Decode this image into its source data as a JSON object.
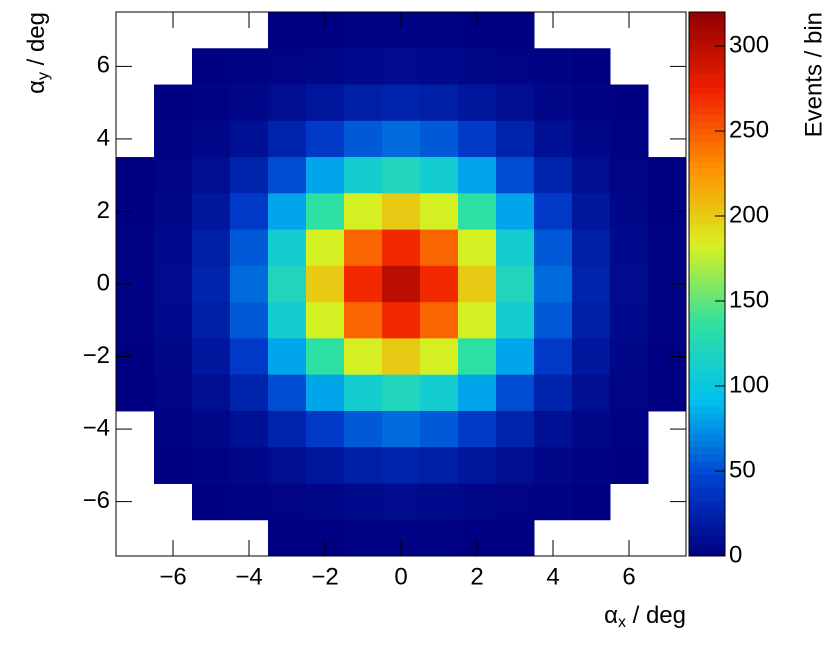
{
  "chart_data": {
    "type": "heatmap",
    "xlabel": [
      "α",
      "x",
      " / deg"
    ],
    "ylabel": [
      "α",
      "y",
      " / deg"
    ],
    "zlabel": "Events / bin",
    "x": [
      -7,
      -6,
      -5,
      -4,
      -3,
      -2,
      -1,
      0,
      1,
      2,
      3,
      4,
      5,
      6,
      7
    ],
    "y": [
      7,
      6,
      5,
      4,
      3,
      2,
      1,
      0,
      -1,
      -2,
      -3,
      -4,
      -5,
      -6,
      -7
    ],
    "z": [
      [
        0,
        0,
        0,
        0,
        1,
        1,
        2,
        2,
        2,
        1,
        1,
        0,
        0,
        0,
        0
      ],
      [
        0,
        0,
        1,
        2,
        3,
        5,
        7,
        8,
        7,
        5,
        3,
        2,
        1,
        0,
        0
      ],
      [
        0,
        1,
        2,
        5,
        10,
        16,
        22,
        25,
        22,
        16,
        10,
        5,
        2,
        1,
        0
      ],
      [
        0,
        2,
        5,
        12,
        25,
        41,
        55,
        61,
        55,
        41,
        25,
        12,
        5,
        2,
        0
      ],
      [
        1,
        3,
        10,
        25,
        50,
        82,
        110,
        122,
        110,
        82,
        50,
        25,
        10,
        3,
        1
      ],
      [
        1,
        5,
        16,
        41,
        82,
        135,
        182,
        201,
        182,
        135,
        82,
        41,
        16,
        5,
        1
      ],
      [
        2,
        7,
        22,
        55,
        110,
        182,
        246,
        271,
        246,
        182,
        110,
        55,
        22,
        7,
        2
      ],
      [
        2,
        8,
        25,
        61,
        122,
        201,
        271,
        300,
        271,
        201,
        122,
        61,
        25,
        8,
        2
      ],
      [
        2,
        7,
        22,
        55,
        110,
        182,
        246,
        271,
        246,
        182,
        110,
        55,
        22,
        7,
        2
      ],
      [
        1,
        5,
        16,
        41,
        82,
        135,
        182,
        201,
        182,
        135,
        82,
        41,
        16,
        5,
        1
      ],
      [
        1,
        3,
        10,
        25,
        50,
        82,
        110,
        122,
        110,
        82,
        50,
        25,
        10,
        3,
        1
      ],
      [
        0,
        2,
        5,
        12,
        25,
        41,
        55,
        61,
        55,
        41,
        25,
        12,
        5,
        2,
        0
      ],
      [
        0,
        1,
        2,
        5,
        10,
        16,
        22,
        25,
        22,
        16,
        10,
        5,
        2,
        1,
        0
      ],
      [
        0,
        0,
        1,
        2,
        3,
        5,
        7,
        8,
        7,
        5,
        3,
        2,
        1,
        0,
        0
      ],
      [
        0,
        0,
        0,
        0,
        1,
        1,
        2,
        2,
        2,
        1,
        1,
        0,
        0,
        0,
        0
      ]
    ],
    "xlim": [
      -7.5,
      7.5
    ],
    "ylim": [
      -7.5,
      7.5
    ],
    "zlim": [
      0,
      320
    ],
    "xticks": [
      {
        "value": -6,
        "label": "−6"
      },
      {
        "value": -4,
        "label": "−4"
      },
      {
        "value": -2,
        "label": "−2"
      },
      0,
      2,
      4,
      6
    ],
    "yticks": [
      {
        "value": -6,
        "label": "−6"
      },
      {
        "value": -4,
        "label": "−4"
      },
      {
        "value": -2,
        "label": "−2"
      },
      0,
      2,
      4,
      6
    ],
    "zticks": [
      0,
      50,
      100,
      150,
      200,
      250,
      300
    ],
    "colormap": [
      "#000080",
      "#0040d0",
      "#00c0f0",
      "#30e0a0",
      "#d8f020",
      "#ff9000",
      "#f02000",
      "#900000"
    ]
  }
}
